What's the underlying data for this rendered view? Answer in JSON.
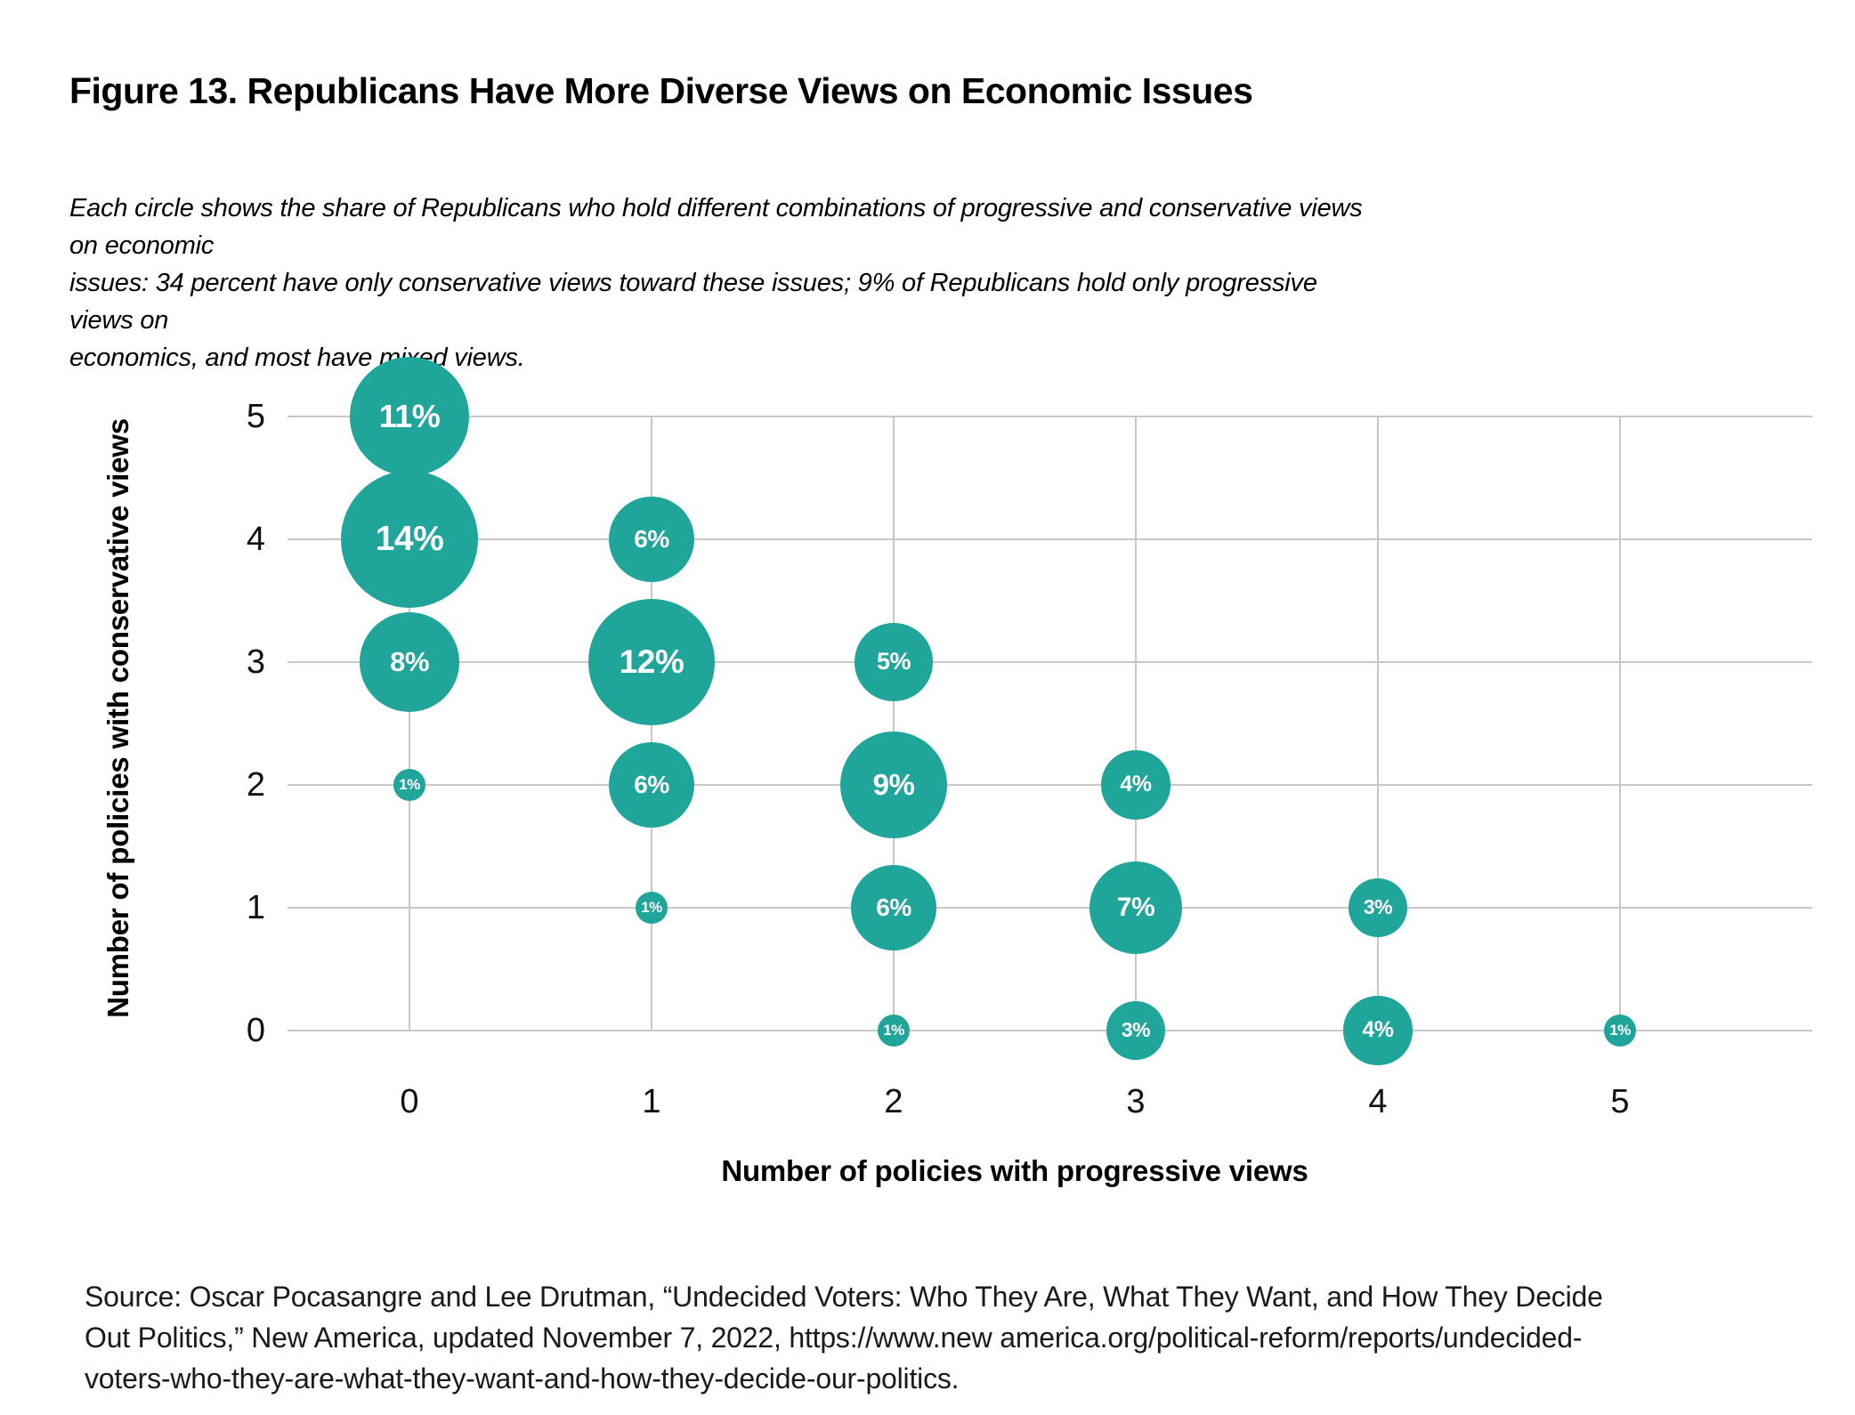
{
  "figure": {
    "title": "Figure 13. Republicans Have More Diverse Views on Economic Issues",
    "subtitle_lines": [
      "Each circle shows the share of Republicans who hold different combinations of progressive and conservative views on economic",
      "issues: 34 percent have only conservative views toward these issues; 9% of Republicans hold only progressive views on",
      "economics, and most have mixed views."
    ],
    "source_lines": [
      "Source: Oscar Pocasangre and Lee Drutman, “Undecided Voters: Who They Are, What They Want, and How They Decide",
      "Out Politics,” New America, updated November 7, 2022, https://www.new america.org/political-reform/reports/undecided-",
      "voters-who-they-are-what-they-want-and-how-they-decide-our-politics."
    ]
  },
  "chart_data": {
    "type": "bubble",
    "title": "Figure 13. Republicans Have More Diverse Views on Economic Issues",
    "xlabel": "Number of policies with progressive views",
    "ylabel": "Number of policies with conservative views",
    "x_ticks": [
      "0",
      "1",
      "2",
      "3",
      "4",
      "5"
    ],
    "y_ticks": [
      "5",
      "4",
      "3",
      "2",
      "1",
      "0"
    ],
    "xlim": [
      0,
      5
    ],
    "ylim": [
      0,
      5
    ],
    "grid": true,
    "legend_position": "none",
    "bubble_color": "#1fa59a",
    "bubble_label_color": "#ffffff",
    "value_unit": "% of Republicans",
    "points": [
      {
        "x": 0,
        "y": 5,
        "value": 11,
        "label": "11%"
      },
      {
        "x": 0,
        "y": 4,
        "value": 14,
        "label": "14%"
      },
      {
        "x": 0,
        "y": 3,
        "value": 8,
        "label": "8%"
      },
      {
        "x": 0,
        "y": 2,
        "value": 1,
        "label": "1%"
      },
      {
        "x": 1,
        "y": 4,
        "value": 6,
        "label": "6%"
      },
      {
        "x": 1,
        "y": 3,
        "value": 12,
        "label": "12%"
      },
      {
        "x": 1,
        "y": 2,
        "value": 6,
        "label": "6%"
      },
      {
        "x": 1,
        "y": 1,
        "value": 1,
        "label": "1%"
      },
      {
        "x": 2,
        "y": 3,
        "value": 5,
        "label": "5%"
      },
      {
        "x": 2,
        "y": 2,
        "value": 9,
        "label": "9%"
      },
      {
        "x": 2,
        "y": 1,
        "value": 6,
        "label": "6%"
      },
      {
        "x": 2,
        "y": 0,
        "value": 1,
        "label": "1%"
      },
      {
        "x": 3,
        "y": 2,
        "value": 4,
        "label": "4%"
      },
      {
        "x": 3,
        "y": 1,
        "value": 7,
        "label": "7%"
      },
      {
        "x": 3,
        "y": 0,
        "value": 3,
        "label": "3%"
      },
      {
        "x": 4,
        "y": 1,
        "value": 3,
        "label": "3%"
      },
      {
        "x": 4,
        "y": 0,
        "value": 4,
        "label": "4%"
      },
      {
        "x": 5,
        "y": 0,
        "value": 1,
        "label": "1%"
      }
    ]
  }
}
